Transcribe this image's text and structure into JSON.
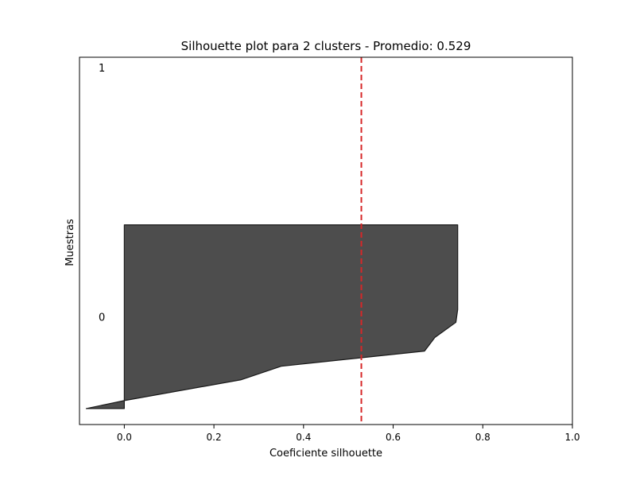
{
  "chart_data": {
    "type": "area",
    "title": "Silhouette plot para 2 clusters - Promedio: 0.529",
    "xlabel": "Coeficiente silhouette",
    "ylabel": "Muestras",
    "xlim": [
      -0.1,
      1.0
    ],
    "ylim": [
      0,
      46
    ],
    "x_ticks": [
      "0.0",
      "0.2",
      "0.4",
      "0.6",
      "0.8",
      "1.0"
    ],
    "average_line": {
      "value": 0.529,
      "color": "#d62728",
      "style": "dashed"
    },
    "fill_color": "#4d4d4d",
    "edge_color": "#1a1a1a",
    "clusters": [
      {
        "label": "0",
        "y_lower": 2,
        "y_upper": 25,
        "label_y": 13.5,
        "profile": [
          {
            "y": 2,
            "value": -0.085
          },
          {
            "y": 3,
            "value": 0.0
          },
          {
            "y": 5.6,
            "value": 0.26
          },
          {
            "y": 7.3,
            "value": 0.35
          },
          {
            "y": 9.2,
            "value": 0.67
          },
          {
            "y": 10.9,
            "value": 0.693
          },
          {
            "y": 12.8,
            "value": 0.74
          },
          {
            "y": 14.4,
            "value": 0.744
          },
          {
            "y": 25,
            "value": 0.744
          }
        ]
      },
      {
        "label": "1",
        "y_lower": 35,
        "y_upper": 35,
        "label_y": 44.7,
        "profile": []
      }
    ],
    "grid": false
  }
}
